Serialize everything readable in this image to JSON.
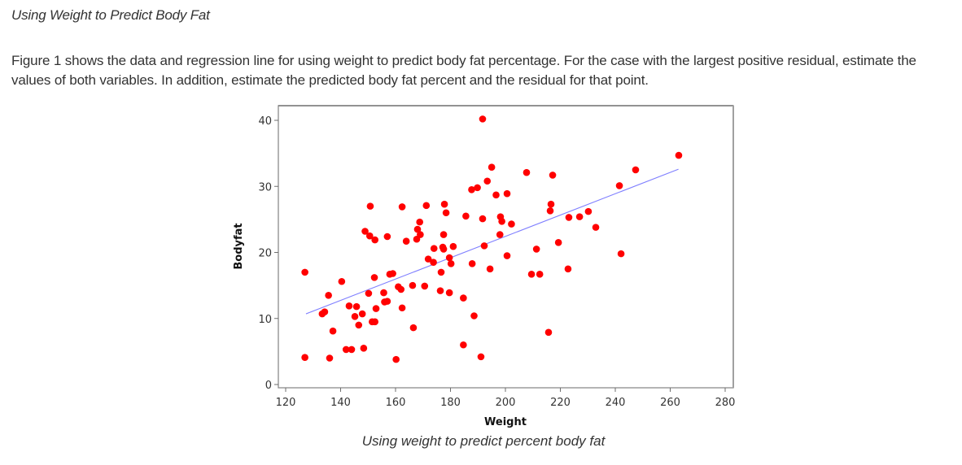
{
  "page": {
    "heading": "Using Weight to Predict Body Fat",
    "paragraph": "Figure 1 shows the data and regression line for using weight to predict body fat percentage. For the case with the largest positive residual, estimate the values of both variables. In addition, estimate the predicted body fat percent and the residual for that point.",
    "caption": "Using weight to predict percent body fat"
  },
  "chart_data": {
    "type": "scatter",
    "title": "",
    "xlabel": "Weight",
    "ylabel": "Bodyfat",
    "xlim": [
      115,
      283
    ],
    "ylim": [
      -0.5,
      42.8
    ],
    "xticks": [
      120,
      140,
      160,
      180,
      200,
      220,
      240,
      260,
      280
    ],
    "yticks": [
      0,
      10,
      20,
      30,
      40
    ],
    "grid": false,
    "legend": "none",
    "point_color": "#ff0000",
    "line_color": "#7f7fff",
    "regression_line": {
      "x": [
        127.4,
        263.0
      ],
      "y": [
        10.7,
        32.6
      ]
    },
    "points": [
      {
        "x": 127.0,
        "y": 17.0
      },
      {
        "x": 140.4,
        "y": 15.6
      },
      {
        "x": 135.6,
        "y": 13.5
      },
      {
        "x": 133.3,
        "y": 10.7
      },
      {
        "x": 134.2,
        "y": 11.0
      },
      {
        "x": 143.1,
        "y": 11.9
      },
      {
        "x": 145.8,
        "y": 11.8
      },
      {
        "x": 145.2,
        "y": 10.3
      },
      {
        "x": 147.9,
        "y": 10.7
      },
      {
        "x": 146.6,
        "y": 9.0
      },
      {
        "x": 137.2,
        "y": 8.1
      },
      {
        "x": 142.0,
        "y": 5.3
      },
      {
        "x": 144.0,
        "y": 5.3
      },
      {
        "x": 148.4,
        "y": 5.5
      },
      {
        "x": 127.0,
        "y": 4.1
      },
      {
        "x": 136.0,
        "y": 4.0
      },
      {
        "x": 150.2,
        "y": 13.8
      },
      {
        "x": 152.9,
        "y": 11.5
      },
      {
        "x": 151.5,
        "y": 9.5
      },
      {
        "x": 152.5,
        "y": 9.5
      },
      {
        "x": 152.3,
        "y": 16.2
      },
      {
        "x": 155.7,
        "y": 13.9
      },
      {
        "x": 156.0,
        "y": 12.5
      },
      {
        "x": 157.0,
        "y": 12.6
      },
      {
        "x": 157.9,
        "y": 16.7
      },
      {
        "x": 159.0,
        "y": 16.8
      },
      {
        "x": 161.0,
        "y": 14.8
      },
      {
        "x": 162.0,
        "y": 14.4
      },
      {
        "x": 162.4,
        "y": 11.6
      },
      {
        "x": 160.2,
        "y": 3.8
      },
      {
        "x": 166.5,
        "y": 8.6
      },
      {
        "x": 166.2,
        "y": 15.0
      },
      {
        "x": 170.6,
        "y": 14.9
      },
      {
        "x": 150.8,
        "y": 27.0
      },
      {
        "x": 162.4,
        "y": 26.9
      },
      {
        "x": 171.2,
        "y": 27.1
      },
      {
        "x": 148.9,
        "y": 23.2
      },
      {
        "x": 150.6,
        "y": 22.5
      },
      {
        "x": 152.5,
        "y": 21.9
      },
      {
        "x": 157.0,
        "y": 22.4
      },
      {
        "x": 163.9,
        "y": 21.7
      },
      {
        "x": 168.8,
        "y": 24.6
      },
      {
        "x": 168.0,
        "y": 23.5
      },
      {
        "x": 169.0,
        "y": 22.7
      },
      {
        "x": 167.7,
        "y": 22.0
      },
      {
        "x": 171.9,
        "y": 19.0
      },
      {
        "x": 173.8,
        "y": 18.5
      },
      {
        "x": 174.0,
        "y": 20.6
      },
      {
        "x": 177.2,
        "y": 20.8
      },
      {
        "x": 177.5,
        "y": 20.5
      },
      {
        "x": 181.0,
        "y": 20.9
      },
      {
        "x": 177.5,
        "y": 22.7
      },
      {
        "x": 177.8,
        "y": 27.3
      },
      {
        "x": 178.4,
        "y": 26.0
      },
      {
        "x": 179.6,
        "y": 19.2
      },
      {
        "x": 180.2,
        "y": 18.3
      },
      {
        "x": 176.6,
        "y": 17.0
      },
      {
        "x": 176.3,
        "y": 14.2
      },
      {
        "x": 179.6,
        "y": 13.9
      },
      {
        "x": 184.7,
        "y": 13.1
      },
      {
        "x": 188.6,
        "y": 10.4
      },
      {
        "x": 184.7,
        "y": 6.0
      },
      {
        "x": 191.1,
        "y": 4.2
      },
      {
        "x": 187.9,
        "y": 18.3
      },
      {
        "x": 192.3,
        "y": 21.0
      },
      {
        "x": 194.4,
        "y": 17.5
      },
      {
        "x": 185.6,
        "y": 25.5
      },
      {
        "x": 191.7,
        "y": 25.1
      },
      {
        "x": 191.7,
        "y": 40.2
      },
      {
        "x": 195.0,
        "y": 32.9
      },
      {
        "x": 193.4,
        "y": 30.8
      },
      {
        "x": 189.8,
        "y": 29.8
      },
      {
        "x": 187.7,
        "y": 29.5
      },
      {
        "x": 196.6,
        "y": 28.7
      },
      {
        "x": 200.6,
        "y": 28.9
      },
      {
        "x": 198.2,
        "y": 25.4
      },
      {
        "x": 198.7,
        "y": 24.7
      },
      {
        "x": 202.2,
        "y": 24.3
      },
      {
        "x": 198.0,
        "y": 22.7
      },
      {
        "x": 200.6,
        "y": 19.5
      },
      {
        "x": 207.7,
        "y": 32.1
      },
      {
        "x": 217.2,
        "y": 31.7
      },
      {
        "x": 216.6,
        "y": 27.3
      },
      {
        "x": 216.3,
        "y": 26.3
      },
      {
        "x": 223.1,
        "y": 25.3
      },
      {
        "x": 227.0,
        "y": 25.4
      },
      {
        "x": 230.2,
        "y": 26.2
      },
      {
        "x": 232.9,
        "y": 23.8
      },
      {
        "x": 219.3,
        "y": 21.5
      },
      {
        "x": 211.3,
        "y": 20.5
      },
      {
        "x": 209.5,
        "y": 16.7
      },
      {
        "x": 212.5,
        "y": 16.7
      },
      {
        "x": 222.8,
        "y": 17.5
      },
      {
        "x": 215.7,
        "y": 7.9
      },
      {
        "x": 242.1,
        "y": 19.8
      },
      {
        "x": 241.5,
        "y": 30.1
      },
      {
        "x": 247.4,
        "y": 32.5
      },
      {
        "x": 263.1,
        "y": 34.7
      }
    ]
  }
}
